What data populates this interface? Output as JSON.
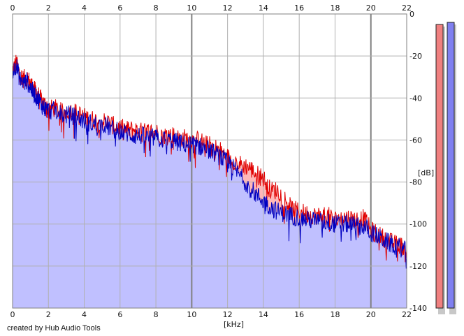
{
  "chart_data": {
    "type": "area",
    "xlabel": "[kHz]",
    "ylabel": "[dB]",
    "xlim": [
      0,
      22
    ],
    "ylim": [
      -140,
      0
    ],
    "x_ticks": [
      0,
      2,
      4,
      6,
      8,
      10,
      12,
      14,
      16,
      18,
      20,
      22
    ],
    "y_ticks": [
      0,
      -20,
      -40,
      -60,
      -80,
      -100,
      -120,
      -140
    ],
    "grid": true,
    "x_units": "kHz",
    "y_units": "dB",
    "series": [
      {
        "color": "#e00000",
        "fill": "#ffb8b8",
        "points": [
          [
            0,
            -27
          ],
          [
            0.2,
            -23
          ],
          [
            0.4,
            -29
          ],
          [
            0.6,
            -31
          ],
          [
            0.8,
            -30
          ],
          [
            1.0,
            -33
          ],
          [
            1.2,
            -36
          ],
          [
            1.4,
            -38
          ],
          [
            1.6,
            -41
          ],
          [
            1.8,
            -43
          ],
          [
            2.0,
            -45
          ],
          [
            2.4,
            -45
          ],
          [
            2.8,
            -47
          ],
          [
            3.2,
            -46
          ],
          [
            3.6,
            -47
          ],
          [
            4.0,
            -49
          ],
          [
            4.4,
            -50
          ],
          [
            4.8,
            -51
          ],
          [
            5.2,
            -51
          ],
          [
            5.6,
            -53
          ],
          [
            6.0,
            -54
          ],
          [
            6.4,
            -55
          ],
          [
            6.8,
            -55
          ],
          [
            7.2,
            -56
          ],
          [
            7.6,
            -56
          ],
          [
            8.0,
            -56
          ],
          [
            8.4,
            -58
          ],
          [
            8.8,
            -57
          ],
          [
            9.2,
            -59
          ],
          [
            9.6,
            -59
          ],
          [
            10.0,
            -60
          ],
          [
            10.4,
            -60
          ],
          [
            10.8,
            -62
          ],
          [
            11.2,
            -63
          ],
          [
            11.6,
            -65
          ],
          [
            12.0,
            -68
          ],
          [
            12.4,
            -70
          ],
          [
            12.8,
            -72
          ],
          [
            13.2,
            -73
          ],
          [
            13.6,
            -76
          ],
          [
            14.0,
            -78
          ],
          [
            14.4,
            -84
          ],
          [
            14.8,
            -84
          ],
          [
            15.2,
            -88
          ],
          [
            15.6,
            -93
          ],
          [
            16.0,
            -94
          ],
          [
            16.4,
            -95
          ],
          [
            16.8,
            -96
          ],
          [
            17.2,
            -96
          ],
          [
            17.6,
            -96
          ],
          [
            18.0,
            -98
          ],
          [
            18.4,
            -97
          ],
          [
            18.8,
            -97
          ],
          [
            19.2,
            -98
          ],
          [
            19.6,
            -97
          ],
          [
            20.0,
            -103
          ],
          [
            20.4,
            -105
          ],
          [
            20.8,
            -107
          ],
          [
            21.2,
            -109
          ],
          [
            21.6,
            -110
          ],
          [
            22.0,
            -112
          ]
        ]
      },
      {
        "color": "#0000c0",
        "fill": "#c0c0ff",
        "points": [
          [
            0,
            -28
          ],
          [
            0.2,
            -24
          ],
          [
            0.4,
            -31
          ],
          [
            0.6,
            -33
          ],
          [
            0.8,
            -32
          ],
          [
            1.0,
            -35
          ],
          [
            1.2,
            -38
          ],
          [
            1.4,
            -40
          ],
          [
            1.6,
            -43
          ],
          [
            1.8,
            -45
          ],
          [
            2.0,
            -46
          ],
          [
            2.4,
            -46
          ],
          [
            2.8,
            -48
          ],
          [
            3.2,
            -48
          ],
          [
            3.6,
            -49
          ],
          [
            4.0,
            -51
          ],
          [
            4.4,
            -52
          ],
          [
            4.8,
            -53
          ],
          [
            5.2,
            -53
          ],
          [
            5.6,
            -55
          ],
          [
            6.0,
            -56
          ],
          [
            6.4,
            -57
          ],
          [
            6.8,
            -58
          ],
          [
            7.2,
            -58
          ],
          [
            7.6,
            -59
          ],
          [
            8.0,
            -59
          ],
          [
            8.4,
            -60
          ],
          [
            8.8,
            -60
          ],
          [
            9.2,
            -61
          ],
          [
            9.6,
            -62
          ],
          [
            10.0,
            -62
          ],
          [
            10.4,
            -63
          ],
          [
            10.8,
            -64
          ],
          [
            11.2,
            -66
          ],
          [
            11.6,
            -68
          ],
          [
            12.0,
            -71
          ],
          [
            12.4,
            -74
          ],
          [
            12.8,
            -78
          ],
          [
            13.2,
            -82
          ],
          [
            13.6,
            -86
          ],
          [
            14.0,
            -89
          ],
          [
            14.4,
            -92
          ],
          [
            14.8,
            -94
          ],
          [
            15.2,
            -95
          ],
          [
            15.6,
            -96
          ],
          [
            16.0,
            -97
          ],
          [
            16.4,
            -98
          ],
          [
            16.8,
            -98
          ],
          [
            17.2,
            -99
          ],
          [
            17.6,
            -99
          ],
          [
            18.0,
            -100
          ],
          [
            18.4,
            -100
          ],
          [
            18.8,
            -100
          ],
          [
            19.2,
            -101
          ],
          [
            19.6,
            -101
          ],
          [
            20.0,
            -104
          ],
          [
            20.4,
            -106
          ],
          [
            20.8,
            -108
          ],
          [
            21.2,
            -110
          ],
          [
            21.6,
            -111
          ],
          [
            22.0,
            -113
          ]
        ]
      }
    ]
  },
  "meters": [
    {
      "name": "left-channel",
      "fill": "#f08080",
      "level_db": -5
    },
    {
      "name": "right-channel",
      "fill": "#8080f0",
      "level_db": -4
    }
  ],
  "footer": {
    "credit": "created by Hub Audio Tools"
  },
  "colors": {
    "grid": "#b0b0b0",
    "grid_major": "#808080",
    "plot_bg": "#ffffff"
  }
}
